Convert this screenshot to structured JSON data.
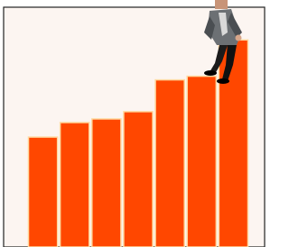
{
  "chart_data": {
    "type": "bar",
    "values": [
      121,
      137,
      141,
      149,
      184,
      188,
      228
    ],
    "color": "#ff4700",
    "ylim": [
      0,
      264
    ]
  }
}
